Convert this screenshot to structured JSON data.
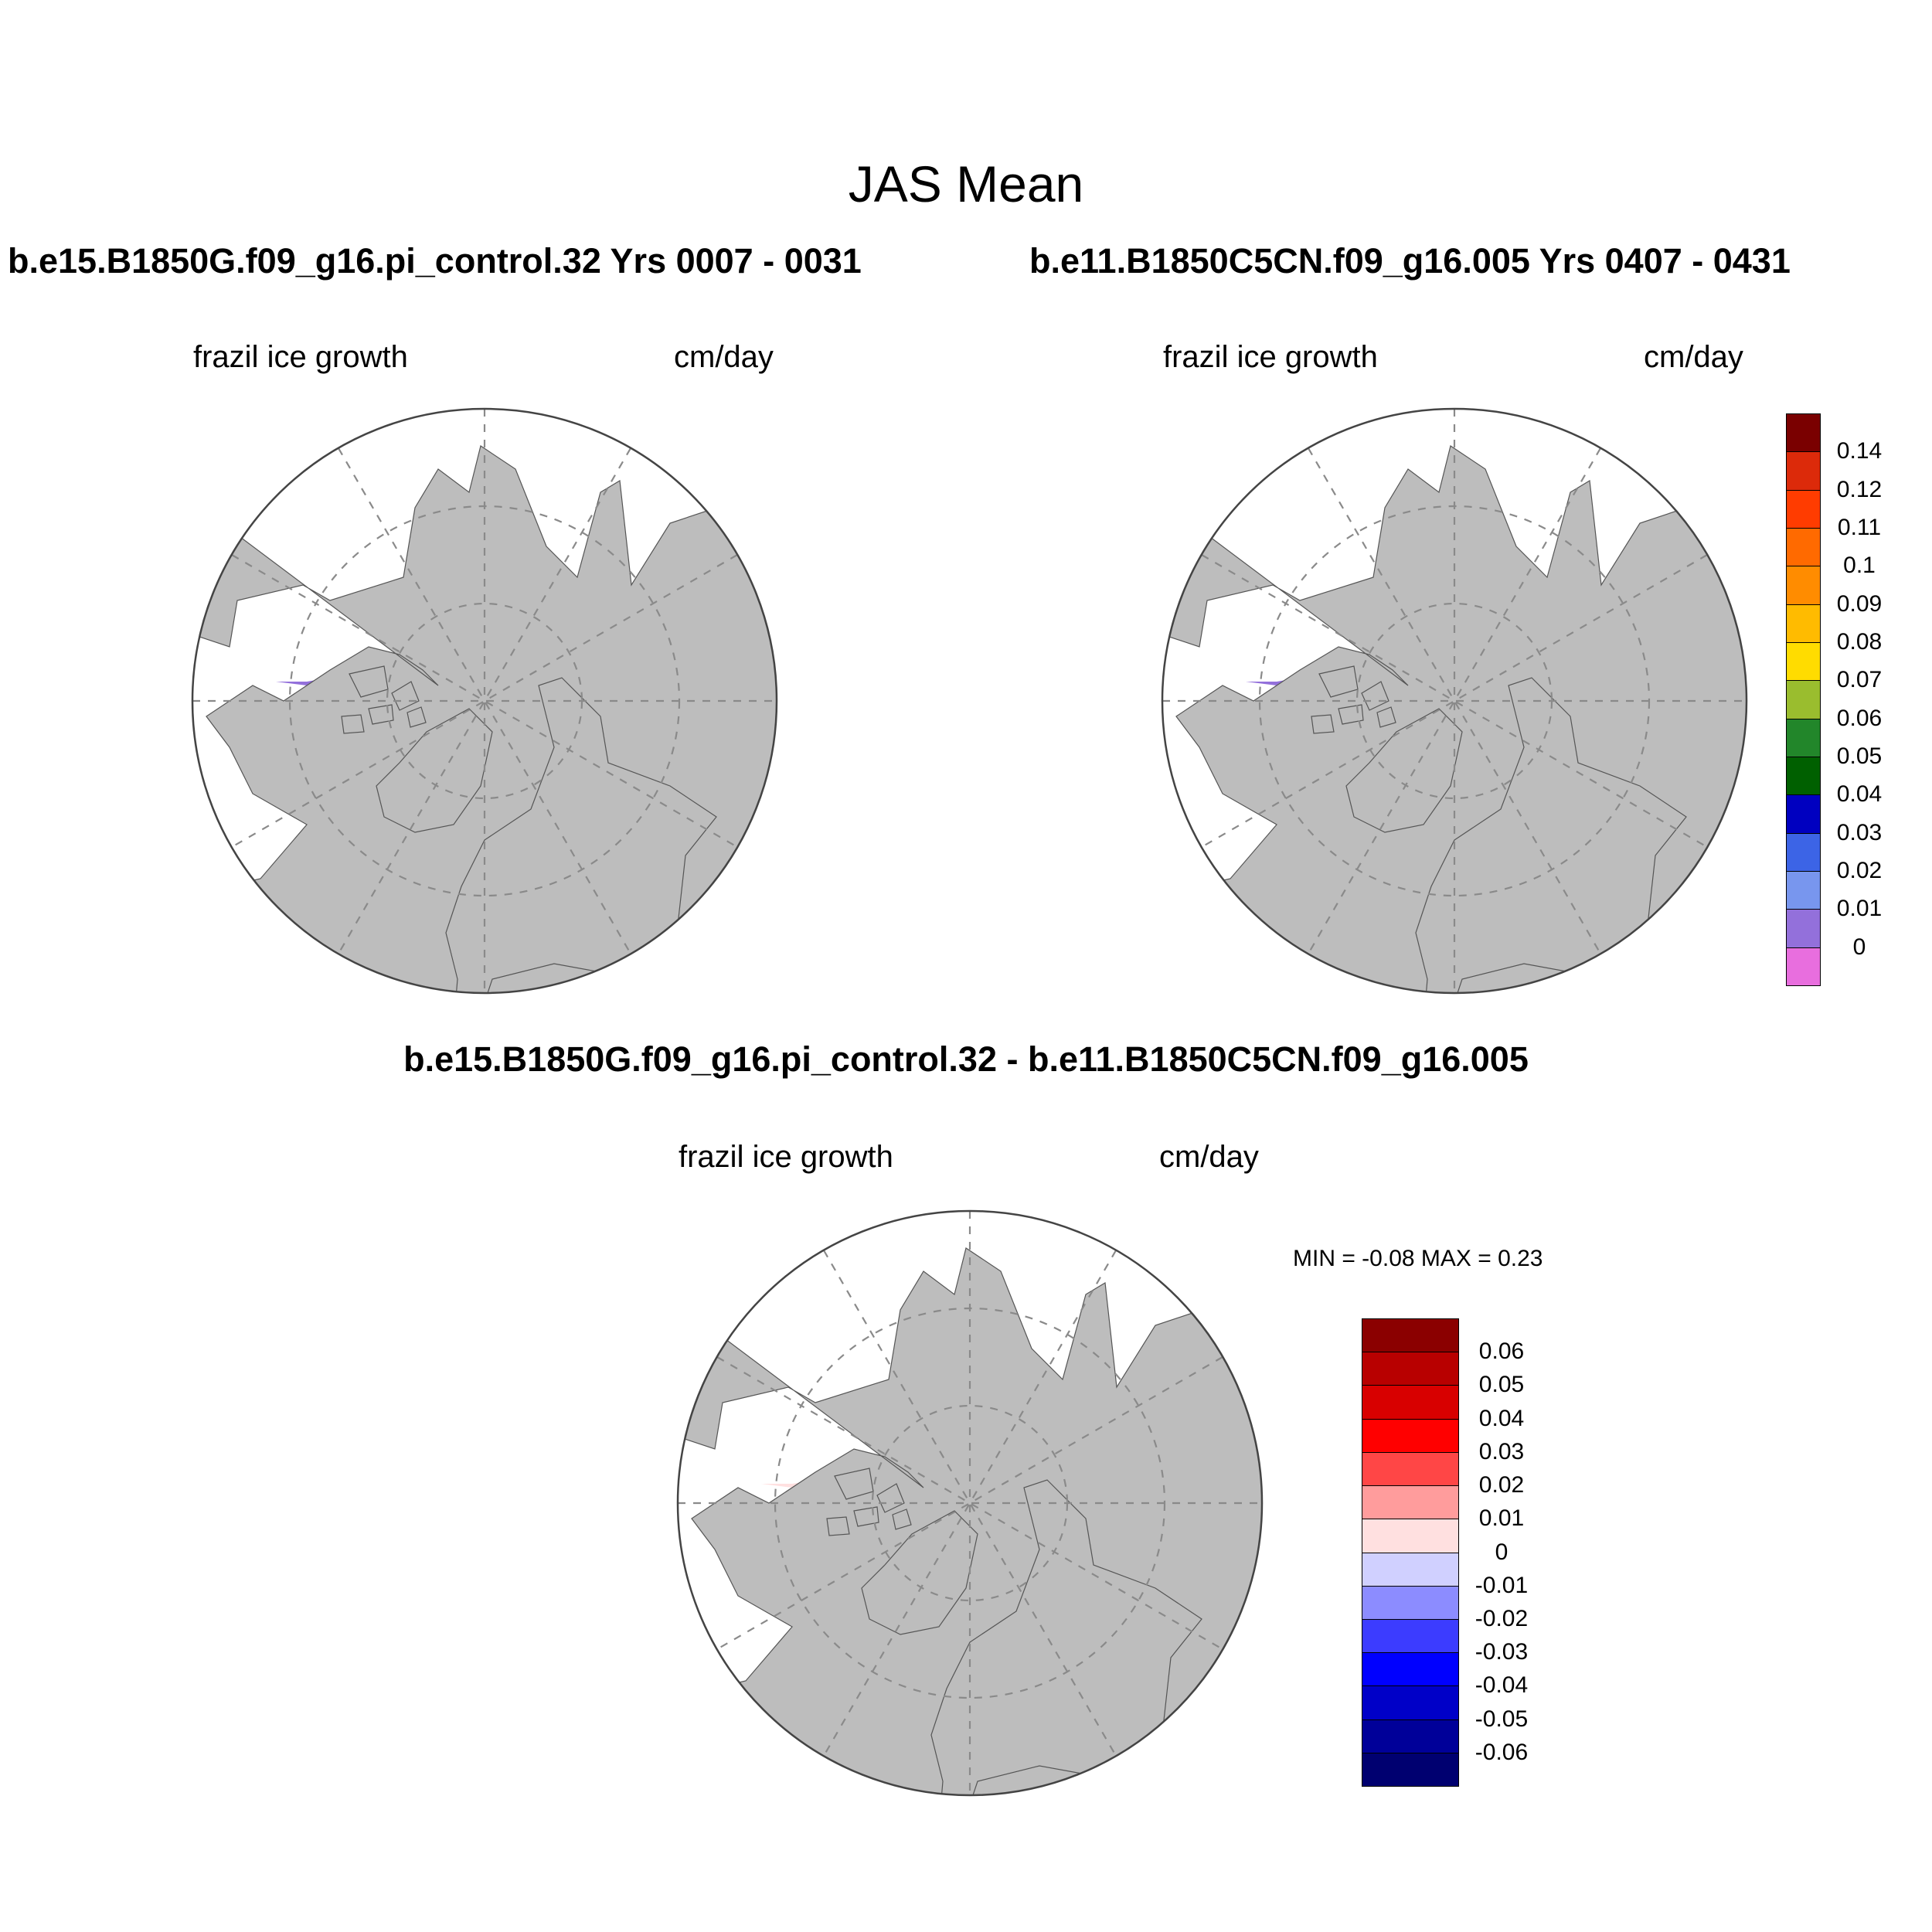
{
  "main_title": "JAS Mean",
  "panels": [
    {
      "title": "b.e15.B1850G.f09_g16.pi_control.32  Yrs 0007 - 0031",
      "left_label": "frazil ice growth",
      "right_label": "cm/day"
    },
    {
      "title": "b.e11.B1850C5CN.f09_g16.005  Yrs 0407 - 0431",
      "left_label": "frazil ice growth",
      "right_label": "cm/day"
    }
  ],
  "diff_panel": {
    "title": "b.e15.B1850G.f09_g16.pi_control.32 - b.e11.B1850C5CN.f09_g16.005",
    "left_label": "frazil ice growth",
    "right_label": "cm/day",
    "min_max": "MIN =  -0.08 MAX =   0.23"
  },
  "colorbar_top": {
    "labels": [
      "0.14",
      "0.12",
      "0.11",
      "0.1",
      "0.09",
      "0.08",
      "0.07",
      "0.06",
      "0.05",
      "0.04",
      "0.03",
      "0.02",
      "0.01",
      "0"
    ],
    "colors": [
      "#7a0000",
      "#dc2a0a",
      "#ff3c00",
      "#ff6a00",
      "#ff8c00",
      "#ffbb00",
      "#ffdc00",
      "#9abd2e",
      "#22862a",
      "#006000",
      "#0000c0",
      "#3c64e6",
      "#7896ee",
      "#9370db",
      "#e86ede"
    ]
  },
  "colorbar_diff": {
    "labels": [
      "0.06",
      "0.05",
      "0.04",
      "0.03",
      "0.02",
      "0.01",
      "0",
      "-0.01",
      "-0.02",
      "-0.03",
      "-0.04",
      "-0.05",
      "-0.06"
    ],
    "colors": [
      "#8b0000",
      "#b80000",
      "#d80000",
      "#ff0000",
      "#ff4646",
      "#ff9c9c",
      "#ffe0e0",
      "#d0d0ff",
      "#8c8cff",
      "#3c3cff",
      "#0000ff",
      "#0000c8",
      "#000099",
      "#000070"
    ]
  },
  "style": {
    "land": "#bdbdbd",
    "ocean": "#ffffff",
    "grid": "#8a8a8a"
  }
}
